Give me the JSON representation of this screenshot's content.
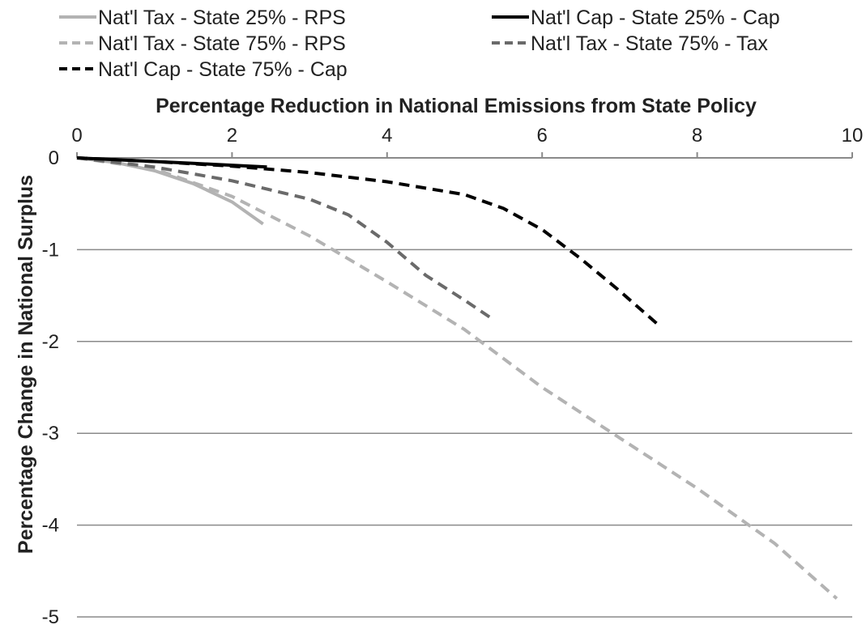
{
  "chart_data": {
    "type": "line",
    "title": "",
    "xlabel": "Percentage Reduction in National Emissions from State Policy",
    "ylabel": "Percentage Change in National Surplus",
    "xlim": [
      0,
      10
    ],
    "ylim": [
      -5,
      0
    ],
    "x_ticks": [
      0,
      2,
      4,
      6,
      8,
      10
    ],
    "y_ticks": [
      0,
      -1,
      -2,
      -3,
      -4,
      -5
    ],
    "x_axis_position": "top",
    "grid": "horizontal",
    "legend_position": "top",
    "series": [
      {
        "name": "Nat'l Tax - State 25% - RPS",
        "color": "#b3b3b3",
        "style": "solid",
        "x": [
          0,
          0.5,
          1.0,
          1.5,
          2.0,
          2.4
        ],
        "y": [
          0,
          -0.05,
          -0.14,
          -0.28,
          -0.48,
          -0.72
        ]
      },
      {
        "name": "Nat'l Cap - State 25% - Cap",
        "color": "#000000",
        "style": "solid",
        "x": [
          0,
          0.5,
          1.0,
          1.5,
          2.0,
          2.45
        ],
        "y": [
          0,
          -0.02,
          -0.04,
          -0.06,
          -0.08,
          -0.1
        ]
      },
      {
        "name": "Nat'l Tax - State 75% - RPS",
        "color": "#b3b3b3",
        "style": "dashed",
        "x": [
          0,
          1,
          2,
          3,
          4,
          5,
          6,
          7,
          8,
          9,
          9.8
        ],
        "y": [
          0,
          -0.12,
          -0.42,
          -0.85,
          -1.35,
          -1.87,
          -2.5,
          -3.05,
          -3.6,
          -4.2,
          -4.8
        ]
      },
      {
        "name": "Nat'l Tax - State 75% - Tax",
        "color": "#6a6a6a",
        "style": "dashed",
        "x": [
          0,
          1,
          2,
          3,
          3.5,
          4,
          4.5,
          5,
          5.35
        ],
        "y": [
          0,
          -0.1,
          -0.25,
          -0.45,
          -0.62,
          -0.92,
          -1.28,
          -1.55,
          -1.75
        ]
      },
      {
        "name": "Nat'l Cap - State 75% - Cap",
        "color": "#000000",
        "style": "dashed",
        "x": [
          0,
          1,
          2,
          3,
          4,
          5,
          5.5,
          6,
          6.5,
          7,
          7.5
        ],
        "y": [
          0,
          -0.04,
          -0.09,
          -0.16,
          -0.26,
          -0.4,
          -0.55,
          -0.78,
          -1.1,
          -1.45,
          -1.82
        ]
      }
    ]
  }
}
